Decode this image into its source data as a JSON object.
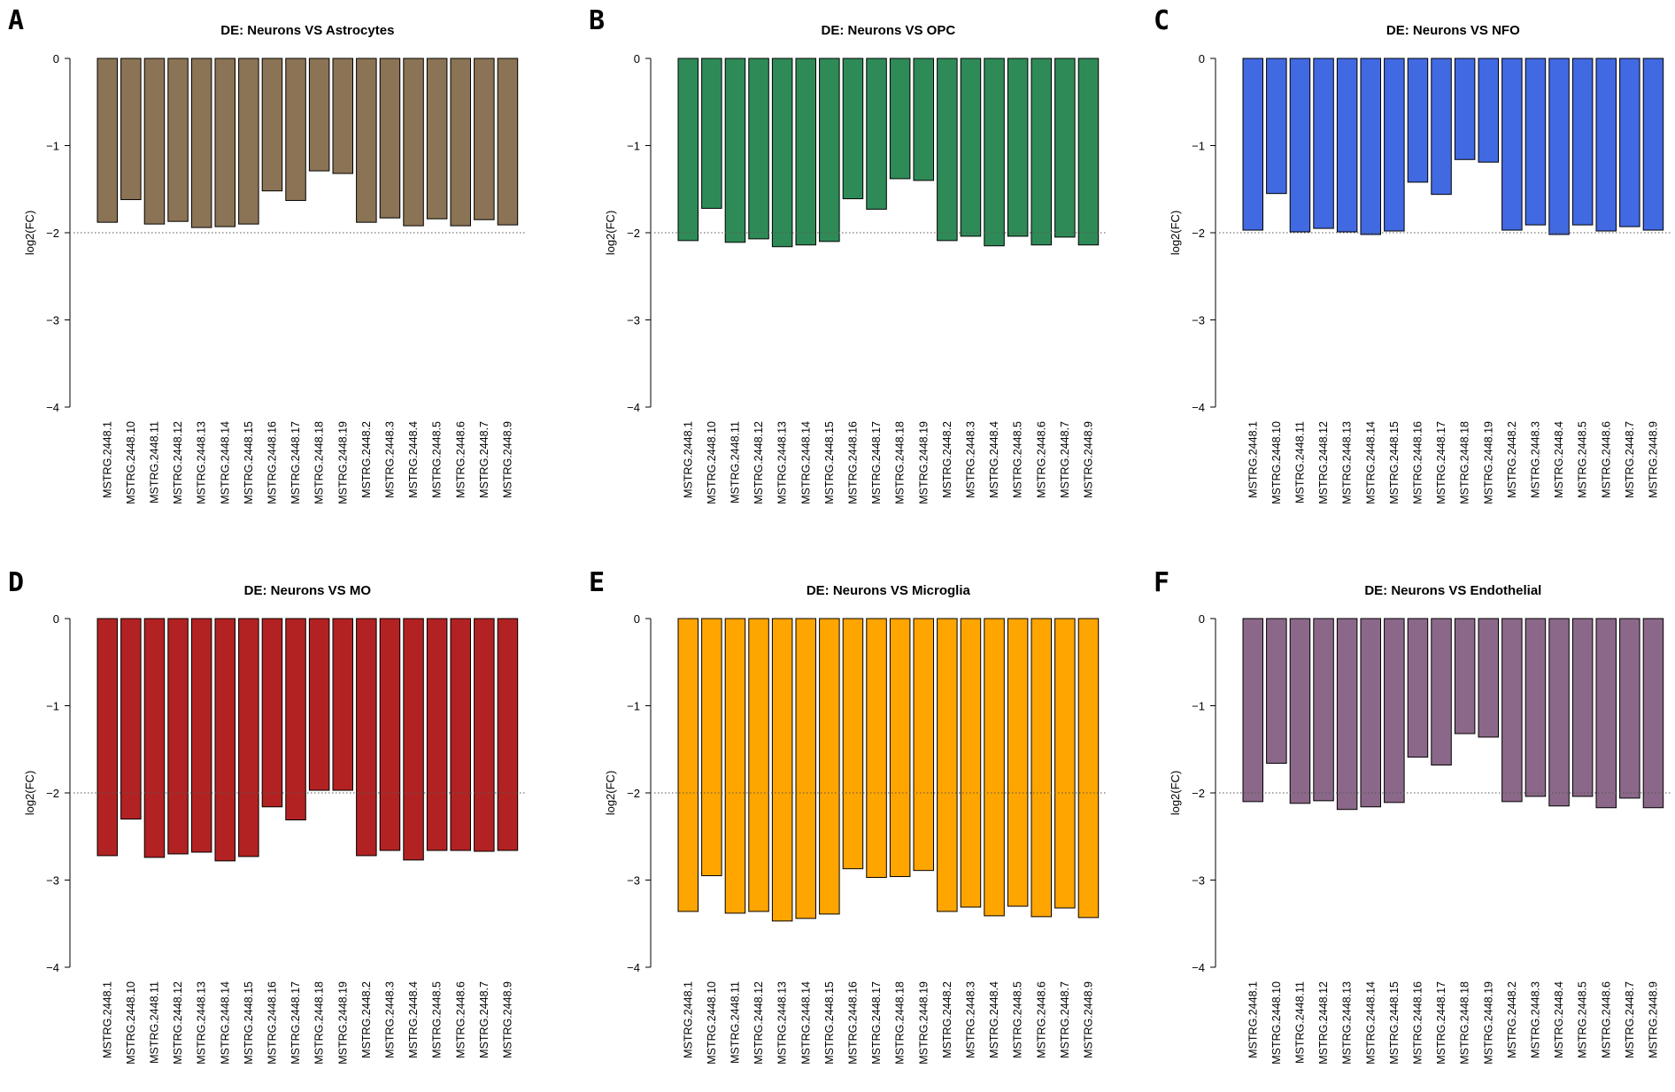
{
  "chart_data": [
    {
      "type": "bar",
      "panel_label": "A",
      "title": "DE: Neurons VS Astrocytes",
      "ylabel": "log2(FC)",
      "xlabel": "",
      "ylim": [
        -4,
        0
      ],
      "yticks": [
        "0",
        "−1",
        "−2",
        "−3",
        "−4"
      ],
      "reference_line": -2,
      "color": "#8B7355",
      "categories": [
        "MSTRG.2448.1",
        "MSTRG.2448.10",
        "MSTRG.2448.11",
        "MSTRG.2448.12",
        "MSTRG.2448.13",
        "MSTRG.2448.14",
        "MSTRG.2448.15",
        "MSTRG.2448.16",
        "MSTRG.2448.17",
        "MSTRG.2448.18",
        "MSTRG.2448.19",
        "MSTRG.2448.2",
        "MSTRG.2448.3",
        "MSTRG.2448.4",
        "MSTRG.2448.5",
        "MSTRG.2448.6",
        "MSTRG.2448.7",
        "MSTRG.2448.9"
      ],
      "values": [
        -1.88,
        -1.62,
        -1.9,
        -1.87,
        -1.94,
        -1.93,
        -1.9,
        -1.52,
        -1.63,
        -1.29,
        -1.32,
        -1.88,
        -1.83,
        -1.92,
        -1.84,
        -1.92,
        -1.85,
        -1.91
      ]
    },
    {
      "type": "bar",
      "panel_label": "B",
      "title": "DE: Neurons VS OPC",
      "ylabel": "log2(FC)",
      "xlabel": "",
      "ylim": [
        -4,
        0
      ],
      "yticks": [
        "0",
        "−1",
        "−2",
        "−3",
        "−4"
      ],
      "reference_line": -2,
      "color": "#2E8B57",
      "categories": [
        "MSTRG.2448.1",
        "MSTRG.2448.10",
        "MSTRG.2448.11",
        "MSTRG.2448.12",
        "MSTRG.2448.13",
        "MSTRG.2448.14",
        "MSTRG.2448.15",
        "MSTRG.2448.16",
        "MSTRG.2448.17",
        "MSTRG.2448.18",
        "MSTRG.2448.19",
        "MSTRG.2448.2",
        "MSTRG.2448.3",
        "MSTRG.2448.4",
        "MSTRG.2448.5",
        "MSTRG.2448.6",
        "MSTRG.2448.7",
        "MSTRG.2448.9"
      ],
      "values": [
        -2.09,
        -1.72,
        -2.11,
        -2.07,
        -2.16,
        -2.14,
        -2.1,
        -1.61,
        -1.73,
        -1.38,
        -1.4,
        -2.09,
        -2.04,
        -2.15,
        -2.04,
        -2.14,
        -2.05,
        -2.14
      ]
    },
    {
      "type": "bar",
      "panel_label": "C",
      "title": "DE: Neurons VS NFO",
      "ylabel": "log2(FC)",
      "xlabel": "",
      "ylim": [
        -4,
        0
      ],
      "yticks": [
        "0",
        "−1",
        "−2",
        "−3",
        "−4"
      ],
      "reference_line": -2,
      "color": "#4169E1",
      "categories": [
        "MSTRG.2448.1",
        "MSTRG.2448.10",
        "MSTRG.2448.11",
        "MSTRG.2448.12",
        "MSTRG.2448.13",
        "MSTRG.2448.14",
        "MSTRG.2448.15",
        "MSTRG.2448.16",
        "MSTRG.2448.17",
        "MSTRG.2448.18",
        "MSTRG.2448.19",
        "MSTRG.2448.2",
        "MSTRG.2448.3",
        "MSTRG.2448.4",
        "MSTRG.2448.5",
        "MSTRG.2448.6",
        "MSTRG.2448.7",
        "MSTRG.2448.9"
      ],
      "values": [
        -1.97,
        -1.55,
        -1.99,
        -1.95,
        -1.99,
        -2.02,
        -1.98,
        -1.42,
        -1.56,
        -1.16,
        -1.19,
        -1.97,
        -1.91,
        -2.02,
        -1.91,
        -1.98,
        -1.93,
        -1.97
      ]
    },
    {
      "type": "bar",
      "panel_label": "D",
      "title": "DE: Neurons VS MO",
      "ylabel": "log2(FC)",
      "xlabel": "",
      "ylim": [
        -4,
        0
      ],
      "yticks": [
        "0",
        "−1",
        "−2",
        "−3",
        "−4"
      ],
      "reference_line": -2,
      "color": "#B22222",
      "categories": [
        "MSTRG.2448.1",
        "MSTRG.2448.10",
        "MSTRG.2448.11",
        "MSTRG.2448.12",
        "MSTRG.2448.13",
        "MSTRG.2448.14",
        "MSTRG.2448.15",
        "MSTRG.2448.16",
        "MSTRG.2448.17",
        "MSTRG.2448.18",
        "MSTRG.2448.19",
        "MSTRG.2448.2",
        "MSTRG.2448.3",
        "MSTRG.2448.4",
        "MSTRG.2448.5",
        "MSTRG.2448.6",
        "MSTRG.2448.7",
        "MSTRG.2448.9"
      ],
      "values": [
        -2.72,
        -2.3,
        -2.74,
        -2.7,
        -2.68,
        -2.78,
        -2.73,
        -2.16,
        -2.31,
        -1.97,
        -1.97,
        -2.72,
        -2.66,
        -2.77,
        -2.66,
        -2.66,
        -2.67,
        -2.66
      ]
    },
    {
      "type": "bar",
      "panel_label": "E",
      "title": "DE: Neurons VS Microglia",
      "ylabel": "log2(FC)",
      "xlabel": "",
      "ylim": [
        -4,
        0
      ],
      "yticks": [
        "0",
        "−1",
        "−2",
        "−3",
        "−4"
      ],
      "reference_line": -2,
      "color": "#FFA500",
      "categories": [
        "MSTRG.2448.1",
        "MSTRG.2448.10",
        "MSTRG.2448.11",
        "MSTRG.2448.12",
        "MSTRG.2448.13",
        "MSTRG.2448.14",
        "MSTRG.2448.15",
        "MSTRG.2448.16",
        "MSTRG.2448.17",
        "MSTRG.2448.18",
        "MSTRG.2448.19",
        "MSTRG.2448.2",
        "MSTRG.2448.3",
        "MSTRG.2448.4",
        "MSTRG.2448.5",
        "MSTRG.2448.6",
        "MSTRG.2448.7",
        "MSTRG.2448.9"
      ],
      "values": [
        -3.36,
        -2.95,
        -3.38,
        -3.36,
        -3.47,
        -3.44,
        -3.39,
        -2.87,
        -2.97,
        -2.96,
        -2.89,
        -3.36,
        -3.31,
        -3.41,
        -3.3,
        -3.42,
        -3.32,
        -3.43
      ]
    },
    {
      "type": "bar",
      "panel_label": "F",
      "title": "DE: Neurons VS Endothelial",
      "ylabel": "log2(FC)",
      "xlabel": "",
      "ylim": [
        -4,
        0
      ],
      "yticks": [
        "0",
        "−1",
        "−2",
        "−3",
        "−4"
      ],
      "reference_line": -2,
      "color": "#8B6889",
      "categories": [
        "MSTRG.2448.1",
        "MSTRG.2448.10",
        "MSTRG.2448.11",
        "MSTRG.2448.12",
        "MSTRG.2448.13",
        "MSTRG.2448.14",
        "MSTRG.2448.15",
        "MSTRG.2448.16",
        "MSTRG.2448.17",
        "MSTRG.2448.18",
        "MSTRG.2448.19",
        "MSTRG.2448.2",
        "MSTRG.2448.3",
        "MSTRG.2448.4",
        "MSTRG.2448.5",
        "MSTRG.2448.6",
        "MSTRG.2448.7",
        "MSTRG.2448.9"
      ],
      "values": [
        -2.1,
        -1.66,
        -2.12,
        -2.09,
        -2.19,
        -2.16,
        -2.11,
        -1.59,
        -1.68,
        -1.32,
        -1.36,
        -2.1,
        -2.04,
        -2.15,
        -2.04,
        -2.17,
        -2.06,
        -2.17
      ]
    }
  ]
}
